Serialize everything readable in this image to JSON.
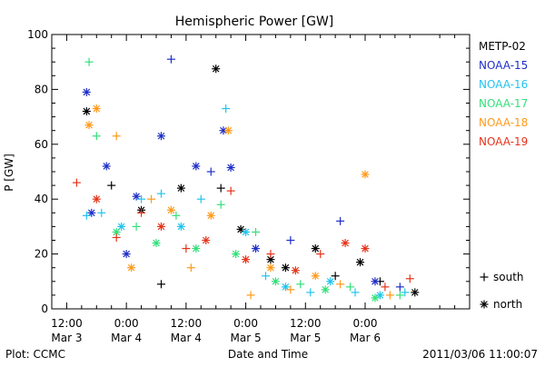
{
  "colors": {
    "METP-02": "#000000",
    "NOAA-15": "#1f2fc8",
    "NOAA-16": "#22c4ee",
    "NOAA-17": "#33e07a",
    "NOAA-18": "#ff9a1a",
    "NOAA-19": "#e5341a"
  },
  "footer": {
    "left": "Plot: CCMC",
    "right": "2011/03/06 11:00:07"
  },
  "chart_data": {
    "type": "scatter",
    "title": "Hemispheric Power [GW]",
    "xlabel": "Date and Time",
    "ylabel": "P [GW]",
    "xlim": [
      -3,
      81
    ],
    "ylim": [
      0,
      100
    ],
    "yticks": [
      0,
      20,
      40,
      60,
      80,
      100
    ],
    "xticks": [
      {
        "x": 0,
        "time": "12:00",
        "date": "Mar 3"
      },
      {
        "x": 12,
        "time": "0:00",
        "date": "Mar 4"
      },
      {
        "x": 24,
        "time": "12:00",
        "date": "Mar 4"
      },
      {
        "x": 36,
        "time": "0:00",
        "date": "Mar 5"
      },
      {
        "x": 48,
        "time": "12:00",
        "date": "Mar 5"
      },
      {
        "x": 60,
        "time": "0:00",
        "date": "Mar 6"
      }
    ],
    "x_unit": "hours since Mar 3 12:00",
    "marker_legend": [
      {
        "symbol": "+",
        "label": "south"
      },
      {
        "symbol": "*",
        "label": "north"
      }
    ],
    "series": [
      {
        "name": "METP-02",
        "points": [
          [
            4,
            72,
            "north"
          ],
          [
            9,
            45,
            "south"
          ],
          [
            15,
            36,
            "north"
          ],
          [
            23,
            44,
            "north"
          ],
          [
            30,
            87.5,
            "north"
          ],
          [
            31,
            44,
            "south"
          ],
          [
            35,
            29,
            "north"
          ],
          [
            41,
            18,
            "north"
          ],
          [
            50,
            22,
            "north"
          ],
          [
            54,
            12,
            "south"
          ],
          [
            59,
            17,
            "north"
          ],
          [
            63,
            10,
            "south"
          ],
          [
            70,
            6,
            "north"
          ],
          [
            19,
            9,
            "south"
          ],
          [
            44,
            15,
            "north"
          ]
        ]
      },
      {
        "name": "NOAA-15",
        "points": [
          [
            4,
            79,
            "north"
          ],
          [
            8,
            52,
            "north"
          ],
          [
            14,
            41,
            "north"
          ],
          [
            19,
            63,
            "north"
          ],
          [
            21,
            91,
            "south"
          ],
          [
            26,
            52,
            "north"
          ],
          [
            29,
            50,
            "south"
          ],
          [
            31.5,
            65,
            "north"
          ],
          [
            33,
            51.5,
            "north"
          ],
          [
            38,
            22,
            "north"
          ],
          [
            45,
            25,
            "south"
          ],
          [
            55,
            32,
            "south"
          ],
          [
            62,
            10,
            "north"
          ],
          [
            67,
            8,
            "south"
          ],
          [
            5,
            35,
            "north"
          ],
          [
            12,
            20,
            "north"
          ]
        ]
      },
      {
        "name": "NOAA-16",
        "points": [
          [
            4,
            34,
            "south"
          ],
          [
            7,
            35,
            "south"
          ],
          [
            11,
            30,
            "north"
          ],
          [
            15,
            40,
            "south"
          ],
          [
            19,
            42,
            "south"
          ],
          [
            23,
            30,
            "north"
          ],
          [
            27,
            40,
            "south"
          ],
          [
            32,
            73,
            "south"
          ],
          [
            36,
            28,
            "north"
          ],
          [
            40,
            12,
            "south"
          ],
          [
            44,
            8,
            "north"
          ],
          [
            49,
            6,
            "south"
          ],
          [
            53,
            10,
            "north"
          ],
          [
            58,
            6,
            "south"
          ],
          [
            63,
            5,
            "north"
          ],
          [
            68,
            6,
            "south"
          ]
        ]
      },
      {
        "name": "NOAA-17",
        "points": [
          [
            4.5,
            90,
            "south"
          ],
          [
            6,
            63,
            "south"
          ],
          [
            10,
            28,
            "north"
          ],
          [
            14,
            30,
            "south"
          ],
          [
            18,
            24,
            "north"
          ],
          [
            22,
            34,
            "south"
          ],
          [
            26,
            22,
            "north"
          ],
          [
            31,
            38,
            "south"
          ],
          [
            34,
            20,
            "north"
          ],
          [
            38,
            28,
            "south"
          ],
          [
            42,
            10,
            "north"
          ],
          [
            47,
            9,
            "south"
          ],
          [
            52,
            7,
            "north"
          ],
          [
            57,
            8,
            "south"
          ],
          [
            62,
            4,
            "north"
          ],
          [
            67,
            5,
            "south"
          ]
        ]
      },
      {
        "name": "NOAA-18",
        "points": [
          [
            4.5,
            67,
            "north"
          ],
          [
            6,
            73,
            "north"
          ],
          [
            10,
            63,
            "south"
          ],
          [
            13,
            15,
            "north"
          ],
          [
            17,
            40,
            "south"
          ],
          [
            21,
            36,
            "north"
          ],
          [
            25,
            15,
            "south"
          ],
          [
            29,
            34,
            "north"
          ],
          [
            32.5,
            65,
            "north"
          ],
          [
            37,
            5,
            "south"
          ],
          [
            41,
            15,
            "north"
          ],
          [
            45,
            7,
            "south"
          ],
          [
            50,
            12,
            "north"
          ],
          [
            55,
            9,
            "south"
          ],
          [
            60,
            49,
            "north"
          ],
          [
            65,
            5,
            "south"
          ]
        ]
      },
      {
        "name": "NOAA-19",
        "points": [
          [
            2,
            46,
            "south"
          ],
          [
            6,
            40,
            "north"
          ],
          [
            10,
            26,
            "south"
          ],
          [
            15,
            35,
            "south"
          ],
          [
            19,
            30,
            "north"
          ],
          [
            24,
            22,
            "south"
          ],
          [
            28,
            25,
            "north"
          ],
          [
            33,
            43,
            "south"
          ],
          [
            36,
            18,
            "north"
          ],
          [
            41,
            20,
            "south"
          ],
          [
            46,
            14,
            "north"
          ],
          [
            51,
            20,
            "south"
          ],
          [
            56,
            24,
            "north"
          ],
          [
            60,
            22,
            "north"
          ],
          [
            64,
            8,
            "south"
          ],
          [
            69,
            11,
            "south"
          ]
        ]
      }
    ]
  }
}
